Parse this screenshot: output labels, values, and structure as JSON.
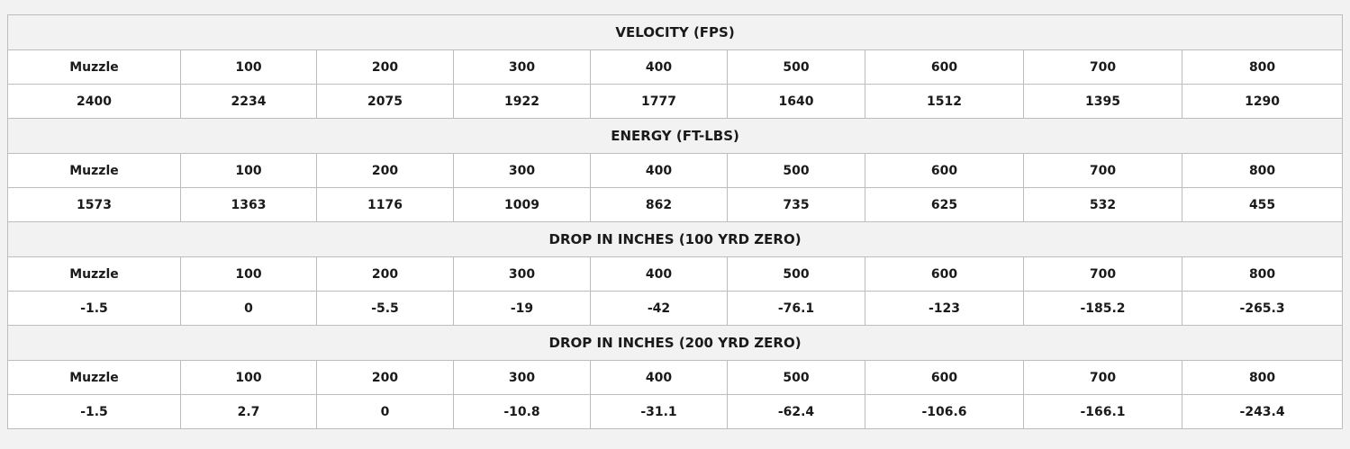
{
  "ballistics_table": {
    "sections": [
      {
        "title": "VELOCITY (FPS)",
        "headers": [
          "Muzzle",
          "100",
          "200",
          "300",
          "400",
          "500",
          "600",
          "700",
          "800"
        ],
        "values": [
          "2400",
          "2234",
          "2075",
          "1922",
          "1777",
          "1640",
          "1512",
          "1395",
          "1290"
        ]
      },
      {
        "title": "ENERGY (FT-LBS)",
        "headers": [
          "Muzzle",
          "100",
          "200",
          "300",
          "400",
          "500",
          "600",
          "700",
          "800"
        ],
        "values": [
          "1573",
          "1363",
          "1176",
          "1009",
          "862",
          "735",
          "625",
          "532",
          "455"
        ]
      },
      {
        "title": "DROP IN INCHES (100 YRD ZERO)",
        "headers": [
          "Muzzle",
          "100",
          "200",
          "300",
          "400",
          "500",
          "600",
          "700",
          "800"
        ],
        "values": [
          "-1.5",
          "0",
          "-5.5",
          "-19",
          "-42",
          "-76.1",
          "-123",
          "-185.2",
          "-265.3"
        ]
      },
      {
        "title": "DROP IN INCHES (200 YRD ZERO)",
        "headers": [
          "Muzzle",
          "100",
          "200",
          "300",
          "400",
          "500",
          "600",
          "700",
          "800"
        ],
        "values": [
          "-1.5",
          "2.7",
          "0",
          "-10.8",
          "-31.1",
          "-62.4",
          "-106.6",
          "-166.1",
          "-243.4"
        ]
      }
    ]
  }
}
